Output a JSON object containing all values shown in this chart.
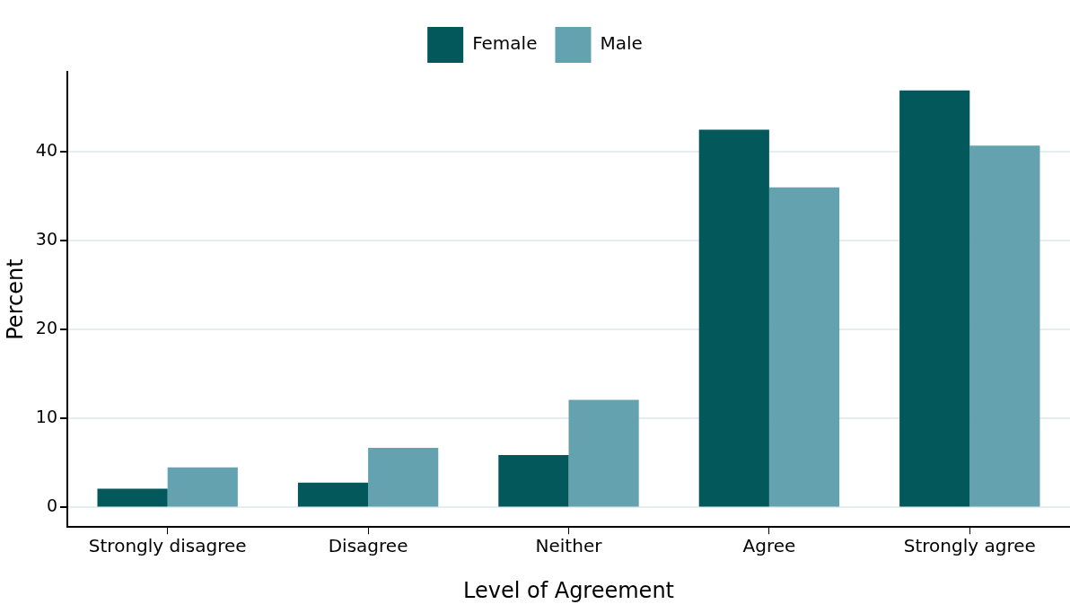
{
  "chart_data": {
    "type": "bar",
    "xlabel": "Level of Agreement",
    "ylabel": "Percent",
    "categories": [
      "Strongly disagree",
      "Disagree",
      "Neither",
      "Agree",
      "Strongly agree"
    ],
    "series": [
      {
        "name": "Female",
        "color": "#02585a",
        "values": [
          2.1,
          2.8,
          5.9,
          42.5,
          46.9
        ]
      },
      {
        "name": "Male",
        "color": "#65a2b0",
        "values": [
          4.5,
          6.7,
          12.1,
          36.0,
          40.7
        ]
      }
    ],
    "ylim": [
      -2.2,
      49
    ],
    "yticks": [
      0,
      10,
      20,
      30,
      40
    ],
    "grid": "y",
    "legend": "top"
  }
}
